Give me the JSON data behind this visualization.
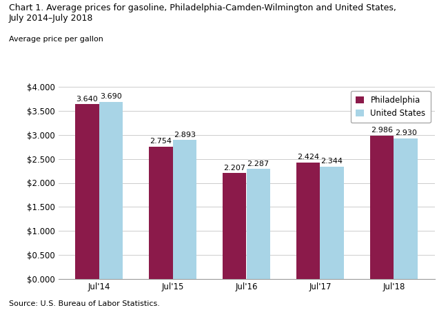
{
  "title_line1": "Chart 1. Average prices for gasoline, Philadelphia-Camden-Wilmington and United States,",
  "title_line2": "July 2014–July 2018",
  "ylabel": "Average price per gallon",
  "source": "Source: U.S. Bureau of Labor Statistics.",
  "categories": [
    "Jul'14",
    "Jul'15",
    "Jul'16",
    "Jul'17",
    "Jul'18"
  ],
  "philadelphia": [
    3.64,
    2.754,
    2.207,
    2.424,
    2.986
  ],
  "us": [
    3.69,
    2.893,
    2.287,
    2.344,
    2.93
  ],
  "philly_color": "#8B1A4A",
  "us_color": "#A8D4E6",
  "ylim": [
    0,
    4.0
  ],
  "yticks": [
    0.0,
    0.5,
    1.0,
    1.5,
    2.0,
    2.5,
    3.0,
    3.5,
    4.0
  ],
  "ytick_labels": [
    "$0.000",
    "$0.500",
    "$1.000",
    "$1.500",
    "$2.000",
    "$2.500",
    "$3.000",
    "$3.500",
    "$4.000"
  ],
  "legend_labels": [
    "Philadelphia",
    "United States"
  ],
  "bar_width": 0.32,
  "label_fontsize": 8,
  "title_fontsize": 9,
  "tick_fontsize": 8.5,
  "legend_fontsize": 8.5,
  "source_fontsize": 8
}
